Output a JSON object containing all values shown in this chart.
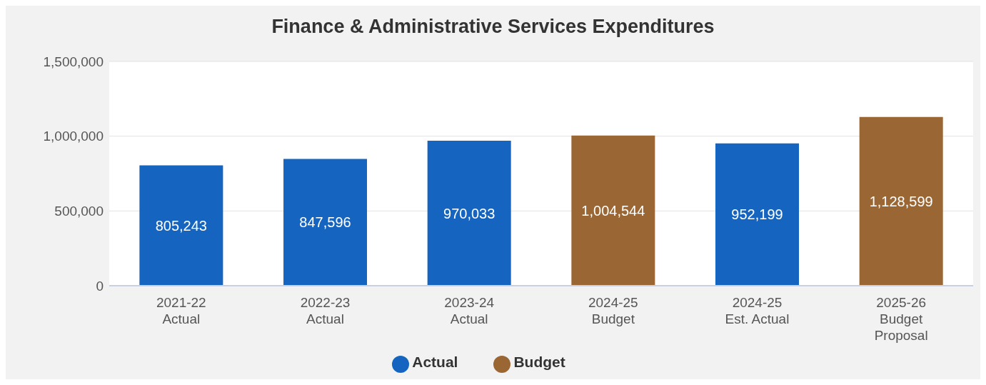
{
  "chart_data": {
    "type": "bar",
    "title": "Finance & Administrative Services Expenditures",
    "categories": [
      "2021-22\nActual",
      "2022-23\nActual",
      "2023-24\nActual",
      "2024-25\nBudget",
      "2024-25\nEst. Actual",
      "2025-26\nBudget\nProposal"
    ],
    "series": [
      {
        "name": "Actual",
        "color": "#1565c0",
        "values": [
          805243,
          847596,
          970033,
          null,
          952199,
          null
        ],
        "value_labels": [
          "805,243",
          "847,596",
          "970,033",
          null,
          "952,199",
          null
        ]
      },
      {
        "name": "Budget",
        "color": "#9a6633",
        "values": [
          null,
          null,
          null,
          1004544,
          null,
          1128599
        ],
        "value_labels": [
          null,
          null,
          null,
          "1,004,544",
          null,
          "1,128,599"
        ]
      }
    ],
    "stacked": true,
    "ylim": [
      0,
      1500000
    ],
    "yticks": [
      {
        "value": 0,
        "label": "0"
      },
      {
        "value": 500000,
        "label": "500,000"
      },
      {
        "value": 1000000,
        "label": "1,000,000"
      },
      {
        "value": 1500000,
        "label": "1,500,000"
      }
    ],
    "grid": "y",
    "legend": "bottom"
  }
}
